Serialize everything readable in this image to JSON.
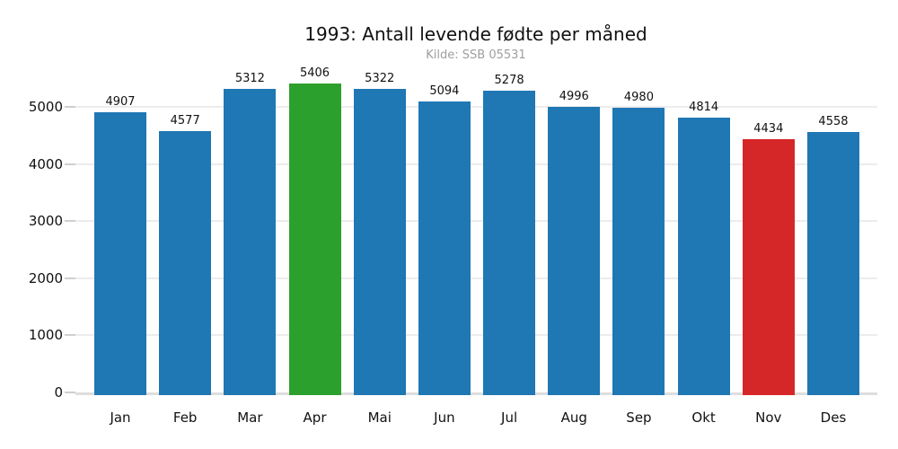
{
  "chart": {
    "title": "1993: Antall levende fødte per måned",
    "subtitle": "Kilde: SSB 05531"
  },
  "chart_data": {
    "type": "bar",
    "title": "1993: Antall levende fødte per måned",
    "subtitle": "Kilde: SSB 05531",
    "categories": [
      "Jan",
      "Feb",
      "Mar",
      "Apr",
      "Mai",
      "Jun",
      "Jul",
      "Aug",
      "Sep",
      "Okt",
      "Nov",
      "Des"
    ],
    "values": [
      4907,
      4577,
      5312,
      5406,
      5322,
      5094,
      5278,
      4996,
      4980,
      4814,
      4434,
      4558
    ],
    "bar_colors": [
      "#1f77b4",
      "#1f77b4",
      "#1f77b4",
      "#2ca02c",
      "#1f77b4",
      "#1f77b4",
      "#1f77b4",
      "#1f77b4",
      "#1f77b4",
      "#1f77b4",
      "#d62728",
      "#1f77b4"
    ],
    "xlabel": "",
    "ylabel": "",
    "yticks": [
      0,
      1000,
      2000,
      3000,
      4000,
      5000
    ],
    "ylim": [
      0,
      5600
    ],
    "grid": true,
    "legend": "none",
    "colors": {
      "default_bar": "#1f77b4",
      "max_bar": "#2ca02c",
      "min_bar": "#d62728",
      "gridline": "#ececec",
      "baseline": "#dedede",
      "tick_mark": "#cfcfcf",
      "subtitle_text": "#9e9e9e",
      "text": "#111111",
      "background": "#ffffff"
    }
  }
}
